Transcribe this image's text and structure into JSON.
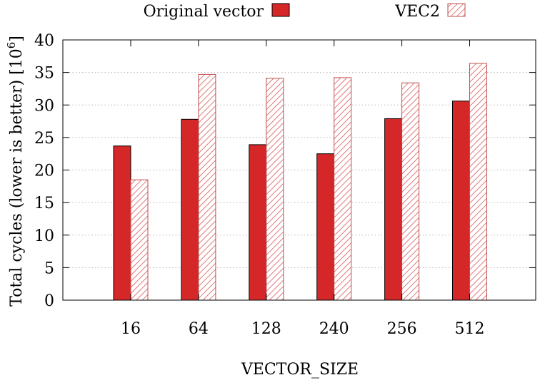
{
  "chart_data": {
    "type": "bar",
    "title": "",
    "xlabel": "VECTOR_SIZE",
    "ylabel_main": "Total cycles (lower is better) [10",
    "ylabel_exponent": "6",
    "ylabel_close": "]",
    "categories": [
      "16",
      "64",
      "128",
      "240",
      "256",
      "512"
    ],
    "series": [
      {
        "name": "Original vector",
        "values": [
          23.7,
          27.8,
          23.9,
          22.5,
          27.9,
          30.6
        ],
        "color": "#d62728",
        "pattern": "solid"
      },
      {
        "name": "VEC2",
        "values": [
          18.5,
          34.7,
          34.1,
          34.2,
          33.4,
          36.4
        ],
        "color": "#d62728",
        "pattern": "hatched"
      }
    ],
    "ylim": [
      0,
      40
    ],
    "yticks": [
      "0",
      "5",
      "10",
      "15",
      "20",
      "25",
      "30",
      "35",
      "40"
    ],
    "grid": "horizontal dotted",
    "legend_position": "top"
  }
}
